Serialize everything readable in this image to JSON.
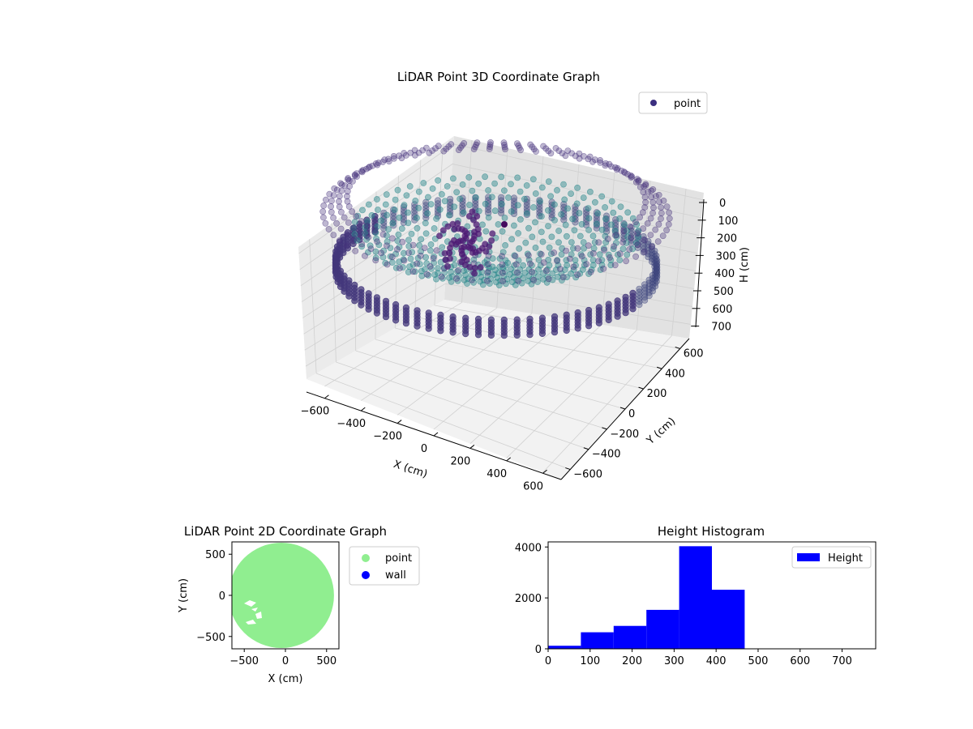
{
  "chart_data": [
    {
      "type": "scatter3d",
      "title": "LiDAR Point 3D Coordinate Graph",
      "xlabel": "X (cm)",
      "ylabel": "Y (cm)",
      "zlabel": "H (cm)",
      "xticks": [
        "−600",
        "−400",
        "−200",
        "0",
        "200",
        "400",
        "600"
      ],
      "yticks": [
        "−600",
        "−400",
        "−200",
        "0",
        "200",
        "400",
        "600"
      ],
      "zticks": [
        "0",
        "100",
        "200",
        "300",
        "400",
        "500",
        "600",
        "700"
      ],
      "xlim": [
        -650,
        650
      ],
      "ylim": [
        -650,
        650
      ],
      "zlim": [
        750,
        0
      ],
      "zaxis_inverted": true,
      "legend": {
        "labels": [
          "point"
        ],
        "location": "top-right"
      },
      "grid": true,
      "colormap": "viridis-like (purple near ceiling, teal at mid height)",
      "point_groups": [
        {
          "shape": "ring",
          "radius_cm": 600,
          "height_cm": [
            0,
            80
          ],
          "description": "outer ring of points near top"
        },
        {
          "shape": "ring",
          "radius_cm": 560,
          "height_cm": [
            380,
            480
          ],
          "description": "dense wall band at mid height"
        },
        {
          "shape": "bowl",
          "radius_cm": [
            0,
            500
          ],
          "height_cm": [
            200,
            450
          ],
          "description": "inner bowl surface"
        },
        {
          "shape": "cluster",
          "center_cm": [
            -150,
            250
          ],
          "height_cm": [
            150,
            300
          ],
          "description": "dense cluster near top centre"
        }
      ]
    },
    {
      "type": "scatter",
      "title": "LiDAR Point 2D Coordinate Graph",
      "xlabel": "X (cm)",
      "ylabel": "Y (cm)",
      "xticks": [
        "−500",
        "0",
        "500"
      ],
      "yticks": [
        "500",
        "0",
        "−500"
      ],
      "xlim": [
        -650,
        650
      ],
      "ylim": [
        -650,
        650
      ],
      "series": [
        {
          "name": "point",
          "color": "#90ee90",
          "shape": "filled disc",
          "radius_cm": 640,
          "center_cm": [
            -50,
            0
          ]
        },
        {
          "name": "wall",
          "color": "#0000ff",
          "points": []
        }
      ],
      "legend": {
        "labels": [
          "point",
          "wall"
        ],
        "location": "outside right"
      }
    },
    {
      "type": "histogram",
      "title": "Height Histogram",
      "xticks": [
        "0",
        "100",
        "200",
        "300",
        "400",
        "500",
        "600",
        "700"
      ],
      "yticks": [
        "0",
        "2000",
        "4000"
      ],
      "xlim": [
        0,
        780
      ],
      "ylim": [
        0,
        4200
      ],
      "bin_edges": [
        0,
        78,
        156,
        234,
        312,
        390,
        468
      ],
      "counts": [
        120,
        650,
        900,
        1530,
        4030,
        2320
      ],
      "series": [
        {
          "name": "Height",
          "color": "#0000ff"
        }
      ],
      "legend": {
        "labels": [
          "Height"
        ],
        "location": "top-right"
      }
    }
  ]
}
